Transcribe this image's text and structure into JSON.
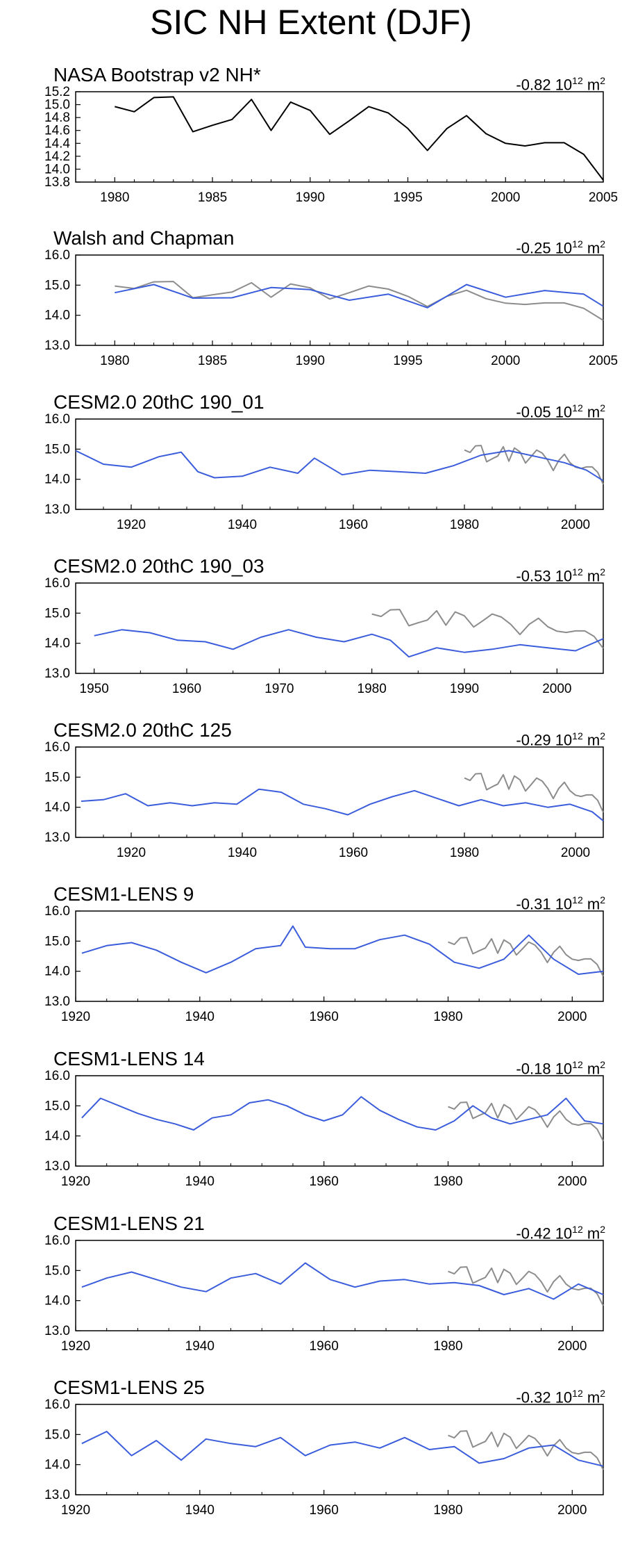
{
  "title": "SIC NH Extent (DJF)",
  "colors": {
    "obs": "#000000",
    "model": "#3b5ddc",
    "reference": "#8c8c8c"
  },
  "obs_ref_note": "gray line = NASA Bootstrap v2 NH* series",
  "chart_data": [
    {
      "type": "line",
      "title": "NASA Bootstrap v2 NH*",
      "trend": {
        "value": "-0.82",
        "unit_base": "10",
        "unit_exp": "12",
        "unit": "m",
        "unit_exp2": "2"
      },
      "xlim": [
        1978,
        2005
      ],
      "ylim": [
        13.8,
        15.2
      ],
      "xticks": [
        1980,
        1985,
        1990,
        1995,
        2000,
        2005
      ],
      "yticks": [
        "15.2",
        "15.0",
        "14.8",
        "14.6",
        "14.4",
        "14.2",
        "14.0",
        "13.8"
      ],
      "show_reference": false,
      "series": [
        {
          "name": "NASA Bootstrap v2 NH*",
          "color": "#000000",
          "x": [
            1980,
            1981,
            1982,
            1983,
            1984,
            1985,
            1986,
            1987,
            1988,
            1989,
            1990,
            1991,
            1992,
            1993,
            1994,
            1995,
            1996,
            1997,
            1998,
            1999,
            2000,
            2001,
            2002,
            2003,
            2004,
            2005
          ],
          "values": [
            14.97,
            14.89,
            15.11,
            15.12,
            14.58,
            14.68,
            14.77,
            15.08,
            14.6,
            15.04,
            14.91,
            14.54,
            14.75,
            14.97,
            14.87,
            14.63,
            14.29,
            14.63,
            14.83,
            14.55,
            14.4,
            14.36,
            14.41,
            14.41,
            14.23,
            13.83
          ]
        }
      ]
    },
    {
      "type": "line",
      "title": "Walsh and Chapman",
      "trend": {
        "value": "-0.25",
        "unit_base": "10",
        "unit_exp": "12",
        "unit": "m",
        "unit_exp2": "2"
      },
      "xlim": [
        1978,
        2005
      ],
      "ylim": [
        13.0,
        16.0
      ],
      "xticks": [
        1980,
        1985,
        1990,
        1995,
        2000,
        2005
      ],
      "yticks": [
        "16.0",
        "15.0",
        "14.0",
        "13.0"
      ],
      "show_reference": true,
      "series": [
        {
          "name": "Walsh and Chapman",
          "color": "#3b5ddc",
          "x": [
            1980,
            1982,
            1984,
            1986,
            1988,
            1990,
            1992,
            1994,
            1996,
            1998,
            2000,
            2002,
            2004,
            2005
          ],
          "values": [
            14.75,
            15.02,
            14.57,
            14.58,
            14.92,
            14.85,
            14.5,
            14.7,
            14.25,
            15.02,
            14.6,
            14.82,
            14.7,
            14.3
          ]
        }
      ]
    },
    {
      "type": "line",
      "title": "CESM2.0 20thC 190_01",
      "trend": {
        "value": "-0.05",
        "unit_base": "10",
        "unit_exp": "12",
        "unit": "m",
        "unit_exp2": "2"
      },
      "xlim": [
        1910,
        2005
      ],
      "ylim": [
        13.0,
        16.0
      ],
      "xticks": [
        1920,
        1940,
        1960,
        1980,
        2000
      ],
      "yticks": [
        "16.0",
        "15.0",
        "14.0",
        "13.0"
      ],
      "show_reference": true,
      "series": [
        {
          "name": "CESM2.0 20thC 190_01",
          "color": "#3b5ddc",
          "x": [
            1910,
            1915,
            1920,
            1925,
            1929,
            1932,
            1935,
            1940,
            1945,
            1950,
            1953,
            1958,
            1963,
            1968,
            1973,
            1978,
            1983,
            1988,
            1993,
            1998,
            2002,
            2005
          ],
          "values": [
            14.95,
            14.5,
            14.4,
            14.75,
            14.9,
            14.25,
            14.05,
            14.1,
            14.4,
            14.2,
            14.7,
            14.15,
            14.3,
            14.25,
            14.2,
            14.45,
            14.8,
            14.95,
            14.75,
            14.55,
            14.3,
            13.95
          ]
        }
      ]
    },
    {
      "type": "line",
      "title": "CESM2.0 20thC 190_03",
      "trend": {
        "value": "-0.53",
        "unit_base": "10",
        "unit_exp": "12",
        "unit": "m",
        "unit_exp2": "2"
      },
      "xlim": [
        1948,
        2005
      ],
      "ylim": [
        13.0,
        16.0
      ],
      "xticks": [
        1950,
        1960,
        1970,
        1980,
        1990,
        2000
      ],
      "yticks": [
        "16.0",
        "15.0",
        "14.0",
        "13.0"
      ],
      "show_reference": true,
      "series": [
        {
          "name": "CESM2.0 20thC 190_03",
          "color": "#3b5ddc",
          "x": [
            1950,
            1953,
            1956,
            1959,
            1962,
            1965,
            1968,
            1971,
            1974,
            1977,
            1980,
            1982,
            1984,
            1987,
            1990,
            1993,
            1996,
            1999,
            2002,
            2005
          ],
          "values": [
            14.25,
            14.45,
            14.35,
            14.1,
            14.05,
            13.8,
            14.2,
            14.45,
            14.2,
            14.05,
            14.3,
            14.1,
            13.55,
            13.85,
            13.7,
            13.8,
            13.95,
            13.85,
            13.75,
            14.15
          ]
        }
      ]
    },
    {
      "type": "line",
      "title": "CESM2.0 20thC 125",
      "trend": {
        "value": "-0.29",
        "unit_base": "10",
        "unit_exp": "12",
        "unit": "m",
        "unit_exp2": "2"
      },
      "xlim": [
        1910,
        2005
      ],
      "ylim": [
        13.0,
        16.0
      ],
      "xticks": [
        1920,
        1940,
        1960,
        1980,
        2000
      ],
      "yticks": [
        "16.0",
        "15.0",
        "14.0",
        "13.0"
      ],
      "show_reference": true,
      "series": [
        {
          "name": "CESM2.0 20thC 125",
          "color": "#3b5ddc",
          "x": [
            1911,
            1915,
            1919,
            1923,
            1927,
            1931,
            1935,
            1939,
            1943,
            1947,
            1951,
            1955,
            1959,
            1963,
            1967,
            1971,
            1975,
            1979,
            1983,
            1987,
            1991,
            1995,
            1999,
            2003,
            2005
          ],
          "values": [
            14.2,
            14.25,
            14.45,
            14.05,
            14.15,
            14.05,
            14.15,
            14.1,
            14.6,
            14.5,
            14.1,
            13.95,
            13.75,
            14.1,
            14.35,
            14.55,
            14.3,
            14.05,
            14.25,
            14.05,
            14.15,
            14.0,
            14.1,
            13.85,
            13.55
          ]
        }
      ]
    },
    {
      "type": "line",
      "title": "CESM1-LENS 9",
      "trend": {
        "value": "-0.31",
        "unit_base": "10",
        "unit_exp": "12",
        "unit": "m",
        "unit_exp2": "2"
      },
      "xlim": [
        1920,
        2005
      ],
      "ylim": [
        13.0,
        16.0
      ],
      "xticks": [
        1920,
        1940,
        1960,
        1980,
        2000
      ],
      "yticks": [
        "16.0",
        "15.0",
        "14.0",
        "13.0"
      ],
      "show_reference": true,
      "series": [
        {
          "name": "CESM1-LENS 9",
          "color": "#3b5ddc",
          "x": [
            1921,
            1925,
            1929,
            1933,
            1937,
            1941,
            1945,
            1949,
            1953,
            1955,
            1957,
            1961,
            1965,
            1969,
            1973,
            1977,
            1981,
            1985,
            1989,
            1993,
            1997,
            2001,
            2005
          ],
          "values": [
            14.6,
            14.85,
            14.95,
            14.7,
            14.3,
            13.95,
            14.3,
            14.75,
            14.85,
            15.5,
            14.8,
            14.75,
            14.75,
            15.05,
            15.2,
            14.9,
            14.3,
            14.1,
            14.4,
            15.2,
            14.4,
            13.9,
            14.0
          ]
        }
      ]
    },
    {
      "type": "line",
      "title": "CESM1-LENS 14",
      "trend": {
        "value": "-0.18",
        "unit_base": "10",
        "unit_exp": "12",
        "unit": "m",
        "unit_exp2": "2"
      },
      "xlim": [
        1920,
        2005
      ],
      "ylim": [
        13.0,
        16.0
      ],
      "xticks": [
        1920,
        1940,
        1960,
        1980,
        2000
      ],
      "yticks": [
        "16.0",
        "15.0",
        "14.0",
        "13.0"
      ],
      "show_reference": true,
      "series": [
        {
          "name": "CESM1-LENS 14",
          "color": "#3b5ddc",
          "x": [
            1921,
            1924,
            1927,
            1930,
            1933,
            1936,
            1939,
            1942,
            1945,
            1948,
            1951,
            1954,
            1957,
            1960,
            1963,
            1966,
            1969,
            1972,
            1975,
            1978,
            1981,
            1984,
            1987,
            1990,
            1993,
            1996,
            1999,
            2002,
            2005
          ],
          "values": [
            14.6,
            15.25,
            15.0,
            14.75,
            14.55,
            14.4,
            14.2,
            14.6,
            14.7,
            15.1,
            15.2,
            15.0,
            14.7,
            14.5,
            14.7,
            15.3,
            14.85,
            14.55,
            14.3,
            14.2,
            14.5,
            15.0,
            14.6,
            14.4,
            14.55,
            14.7,
            15.25,
            14.5,
            14.4
          ]
        }
      ]
    },
    {
      "type": "line",
      "title": "CESM1-LENS 21",
      "trend": {
        "value": "-0.42",
        "unit_base": "10",
        "unit_exp": "12",
        "unit": "m",
        "unit_exp2": "2"
      },
      "xlim": [
        1920,
        2005
      ],
      "ylim": [
        13.0,
        16.0
      ],
      "xticks": [
        1920,
        1940,
        1960,
        1980,
        2000
      ],
      "yticks": [
        "16.0",
        "15.0",
        "14.0",
        "13.0"
      ],
      "show_reference": true,
      "series": [
        {
          "name": "CESM1-LENS 21",
          "color": "#3b5ddc",
          "x": [
            1921,
            1925,
            1929,
            1933,
            1937,
            1941,
            1945,
            1949,
            1953,
            1957,
            1961,
            1965,
            1969,
            1973,
            1977,
            1981,
            1985,
            1989,
            1993,
            1997,
            2001,
            2005
          ],
          "values": [
            14.45,
            14.75,
            14.95,
            14.7,
            14.45,
            14.3,
            14.75,
            14.9,
            14.55,
            15.25,
            14.7,
            14.45,
            14.65,
            14.7,
            14.55,
            14.6,
            14.5,
            14.2,
            14.4,
            14.05,
            14.55,
            14.2
          ]
        }
      ]
    },
    {
      "type": "line",
      "title": "CESM1-LENS 25",
      "trend": {
        "value": "-0.32",
        "unit_base": "10",
        "unit_exp": "12",
        "unit": "m",
        "unit_exp2": "2"
      },
      "xlim": [
        1920,
        2005
      ],
      "ylim": [
        13.0,
        16.0
      ],
      "xticks": [
        1920,
        1940,
        1960,
        1980,
        2000
      ],
      "yticks": [
        "16.0",
        "15.0",
        "14.0",
        "13.0"
      ],
      "show_reference": true,
      "series": [
        {
          "name": "CESM1-LENS 25",
          "color": "#3b5ddc",
          "x": [
            1921,
            1925,
            1929,
            1933,
            1937,
            1941,
            1945,
            1949,
            1953,
            1957,
            1961,
            1965,
            1969,
            1973,
            1977,
            1981,
            1985,
            1989,
            1993,
            1997,
            2001,
            2005
          ],
          "values": [
            14.7,
            15.1,
            14.3,
            14.8,
            14.15,
            14.85,
            14.7,
            14.6,
            14.9,
            14.3,
            14.65,
            14.75,
            14.55,
            14.9,
            14.5,
            14.6,
            14.05,
            14.2,
            14.55,
            14.65,
            14.15,
            13.95
          ]
        }
      ]
    }
  ]
}
